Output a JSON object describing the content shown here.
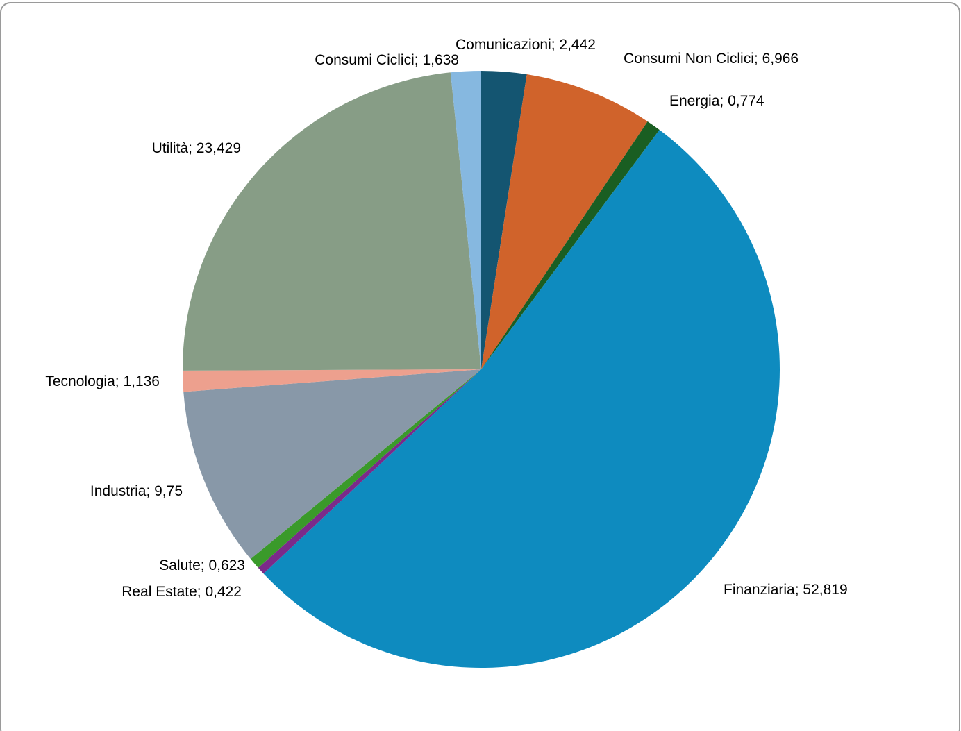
{
  "chart_data": {
    "type": "pie",
    "categories": [
      "Comunicazioni",
      "Consumi Non Ciclici",
      "Energia",
      "Finanziaria",
      "Real Estate",
      "Salute",
      "Industria",
      "Tecnologia",
      "Utilità",
      "Consumi Ciclici"
    ],
    "values": [
      2.442,
      6.966,
      0.774,
      52.819,
      0.422,
      0.623,
      9.75,
      1.136,
      23.429,
      1.638
    ],
    "value_labels": [
      "2,442",
      "6,966",
      "0,774",
      "52,819",
      "0,422",
      "0,623",
      "9,75",
      "1,136",
      "23,429",
      "1,638"
    ],
    "label_separator": "; ",
    "colors": [
      "#145571",
      "#d0632b",
      "#1a5e22",
      "#0e8bbf",
      "#7b2a8a",
      "#3a9a2a",
      "#8898a8",
      "#eda08e",
      "#879d86",
      "#86b8e0"
    ]
  }
}
